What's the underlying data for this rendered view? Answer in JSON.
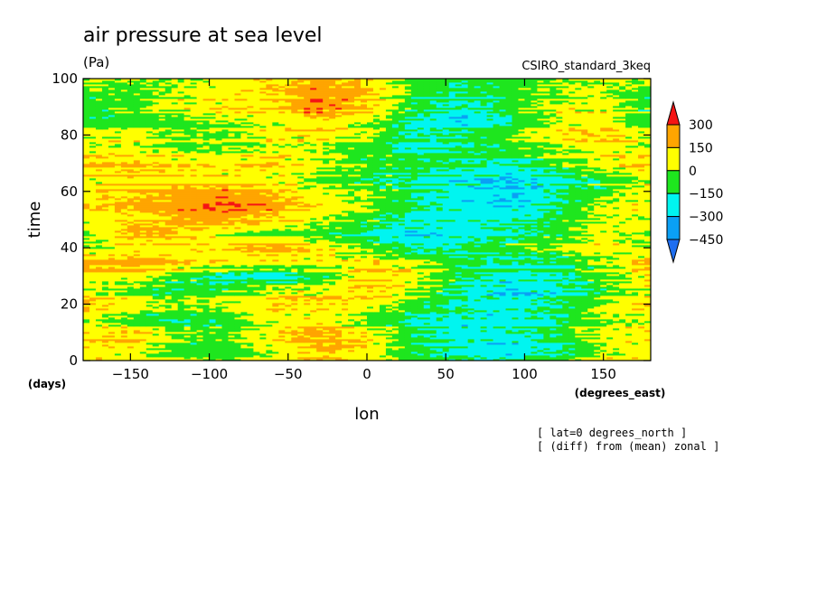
{
  "chart_data": {
    "type": "heatmap",
    "title": "air pressure at sea level",
    "units": "(Pa)",
    "model": "CSIRO_standard_3keq",
    "xlabel": "lon",
    "xunits": "(degrees_east)",
    "ylabel": "time",
    "yunits": "(days)",
    "xlim": [
      -180,
      180
    ],
    "ylim": [
      0,
      100
    ],
    "xticks": [
      -150,
      -100,
      -50,
      0,
      50,
      100,
      150
    ],
    "yticks": [
      0,
      20,
      40,
      60,
      80,
      100
    ],
    "xtick_labels": [
      "−150",
      "−100",
      "−50",
      "0",
      "50",
      "100",
      "150"
    ],
    "ytick_labels": [
      "0",
      "20",
      "40",
      "60",
      "80",
      "100"
    ],
    "annotations": [
      "[ lat=0 degrees_north ]",
      "[ (diff) from (mean) zonal ]"
    ],
    "colorbar": {
      "levels": [
        -600,
        -450,
        -300,
        -150,
        0,
        150,
        300,
        450
      ],
      "labels": [
        "300",
        "150",
        "0",
        "−150",
        "−300",
        "−450"
      ],
      "colors": [
        "#1e6ef0",
        "#0aa0f5",
        "#00f5f0",
        "#1ee61e",
        "#ffff00",
        "#ffa500",
        "#f51414"
      ]
    },
    "x_range_sampled": [
      -180,
      -150,
      -120,
      -90,
      -60,
      -30,
      0,
      30,
      60,
      90,
      120,
      150,
      180
    ],
    "field_rows": [
      {
        "day": 100,
        "values": [
          40,
          20,
          10,
          60,
          150,
          200,
          120,
          -50,
          -100,
          -80,
          10,
          50,
          40
        ]
      },
      {
        "day": 95,
        "values": [
          -60,
          -80,
          40,
          80,
          130,
          260,
          180,
          -80,
          -150,
          -60,
          0,
          20,
          -60
        ]
      },
      {
        "day": 90,
        "values": [
          -100,
          -40,
          60,
          100,
          100,
          300,
          150,
          -100,
          -200,
          -100,
          50,
          80,
          -100
        ]
      },
      {
        "day": 85,
        "values": [
          -80,
          -60,
          -20,
          40,
          80,
          150,
          60,
          -150,
          -250,
          -120,
          60,
          100,
          -80
        ]
      },
      {
        "day": 80,
        "values": [
          20,
          60,
          -60,
          -40,
          60,
          80,
          0,
          -200,
          -150,
          -40,
          80,
          160,
          20
        ]
      },
      {
        "day": 75,
        "values": [
          80,
          100,
          40,
          20,
          100,
          60,
          -40,
          -150,
          -100,
          -60,
          40,
          100,
          80
        ]
      },
      {
        "day": 70,
        "values": [
          120,
          140,
          80,
          60,
          120,
          40,
          -80,
          -100,
          -150,
          -200,
          -80,
          60,
          120
        ]
      },
      {
        "day": 65,
        "values": [
          100,
          160,
          140,
          120,
          100,
          20,
          -60,
          -120,
          -200,
          -250,
          -150,
          -40,
          100
        ]
      },
      {
        "day": 60,
        "values": [
          60,
          120,
          180,
          200,
          140,
          40,
          -40,
          -150,
          -250,
          -300,
          -200,
          -80,
          60
        ]
      },
      {
        "day": 55,
        "values": [
          80,
          140,
          220,
          280,
          200,
          80,
          -20,
          -180,
          -260,
          -320,
          -180,
          0,
          80
        ]
      },
      {
        "day": 50,
        "values": [
          40,
          100,
          160,
          200,
          120,
          20,
          -80,
          -200,
          -220,
          -200,
          -100,
          40,
          40
        ]
      },
      {
        "day": 45,
        "values": [
          60,
          220,
          180,
          60,
          -20,
          -60,
          -150,
          -260,
          -200,
          -150,
          -60,
          60,
          60
        ]
      },
      {
        "day": 40,
        "values": [
          -40,
          40,
          60,
          120,
          200,
          120,
          -40,
          -200,
          -150,
          -80,
          0,
          80,
          -40
        ]
      },
      {
        "day": 35,
        "values": [
          220,
          260,
          180,
          100,
          80,
          60,
          120,
          40,
          -100,
          -150,
          -120,
          0,
          220
        ]
      },
      {
        "day": 30,
        "values": [
          120,
          80,
          -40,
          -160,
          -200,
          -100,
          140,
          80,
          -120,
          -200,
          -180,
          -40,
          120
        ]
      },
      {
        "day": 25,
        "values": [
          60,
          -40,
          -120,
          -80,
          40,
          80,
          160,
          40,
          -150,
          -250,
          -200,
          -60,
          60
        ]
      },
      {
        "day": 20,
        "values": [
          160,
          80,
          -40,
          20,
          100,
          120,
          60,
          -100,
          -200,
          -260,
          -180,
          -20,
          160
        ]
      },
      {
        "day": 15,
        "values": [
          40,
          -60,
          -120,
          -60,
          60,
          100,
          -20,
          -150,
          -180,
          -200,
          -120,
          40,
          40
        ]
      },
      {
        "day": 10,
        "values": [
          100,
          140,
          20,
          -60,
          120,
          200,
          100,
          -120,
          -220,
          -200,
          -100,
          60,
          100
        ]
      },
      {
        "day": 5,
        "values": [
          160,
          120,
          -60,
          -80,
          80,
          220,
          140,
          -80,
          -180,
          -220,
          -150,
          20,
          160
        ]
      },
      {
        "day": 0,
        "values": [
          80,
          60,
          20,
          -40,
          60,
          120,
          60,
          -60,
          -140,
          -160,
          -60,
          80,
          80
        ]
      }
    ]
  }
}
